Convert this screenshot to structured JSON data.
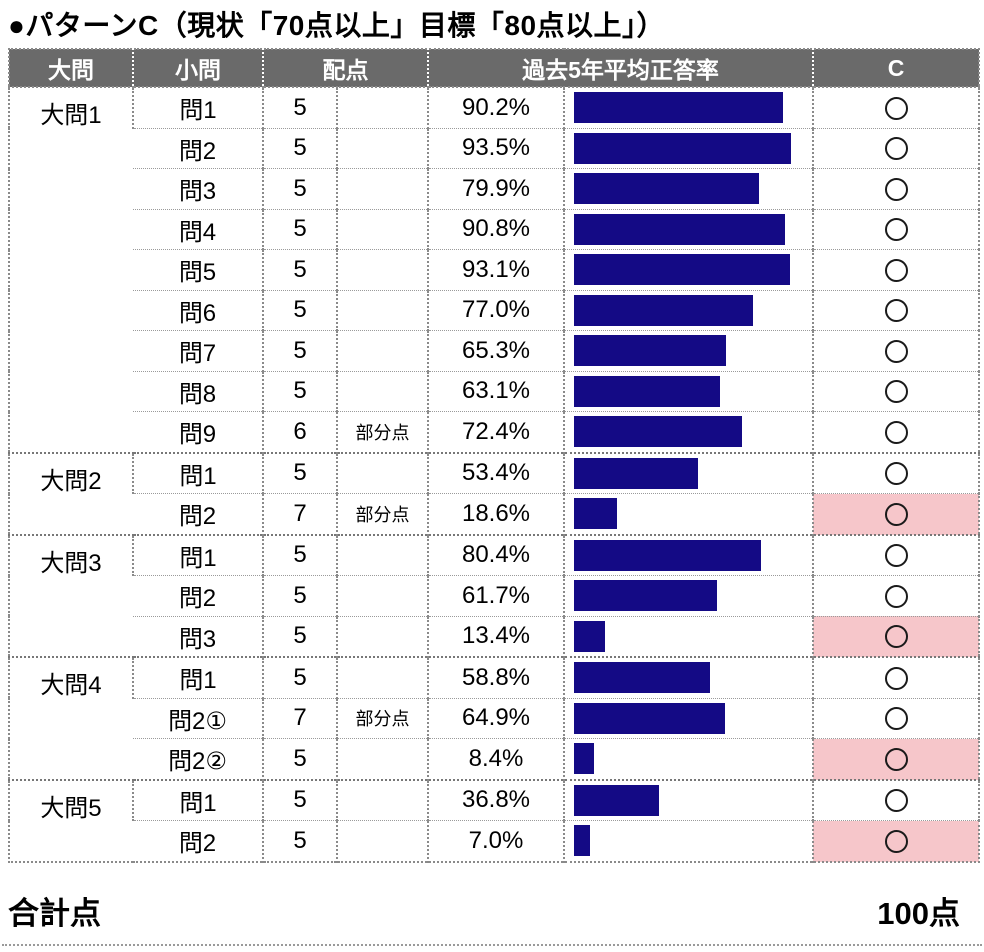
{
  "title": "●パターンC（現状「70点以上」目標「80点以上」）",
  "colors": {
    "header_bg": "#6a6a6a",
    "bar": "#140a85",
    "highlight": "#f6c6ca",
    "circle": "#1a1a1a"
  },
  "table": {
    "headers": {
      "daimon": "大問",
      "shomon": "小問",
      "haiten": "配点",
      "rate": "過去5年平均正答率",
      "c": "C"
    },
    "groups": [
      {
        "label": "大問1",
        "rows": [
          {
            "q": "問1",
            "points": "5",
            "note": "",
            "rate": "90.2%",
            "value": 90.2,
            "mark": "〇",
            "highlight": false
          },
          {
            "q": "問2",
            "points": "5",
            "note": "",
            "rate": "93.5%",
            "value": 93.5,
            "mark": "〇",
            "highlight": false
          },
          {
            "q": "問3",
            "points": "5",
            "note": "",
            "rate": "79.9%",
            "value": 79.9,
            "mark": "〇",
            "highlight": false
          },
          {
            "q": "問4",
            "points": "5",
            "note": "",
            "rate": "90.8%",
            "value": 90.8,
            "mark": "〇",
            "highlight": false
          },
          {
            "q": "問5",
            "points": "5",
            "note": "",
            "rate": "93.1%",
            "value": 93.1,
            "mark": "〇",
            "highlight": false
          },
          {
            "q": "問6",
            "points": "5",
            "note": "",
            "rate": "77.0%",
            "value": 77.0,
            "mark": "〇",
            "highlight": false
          },
          {
            "q": "問7",
            "points": "5",
            "note": "",
            "rate": "65.3%",
            "value": 65.3,
            "mark": "〇",
            "highlight": false
          },
          {
            "q": "問8",
            "points": "5",
            "note": "",
            "rate": "63.1%",
            "value": 63.1,
            "mark": "〇",
            "highlight": false
          },
          {
            "q": "問9",
            "points": "6",
            "note": "部分点",
            "rate": "72.4%",
            "value": 72.4,
            "mark": "〇",
            "highlight": false
          }
        ]
      },
      {
        "label": "大問2",
        "rows": [
          {
            "q": "問1",
            "points": "5",
            "note": "",
            "rate": "53.4%",
            "value": 53.4,
            "mark": "〇",
            "highlight": false
          },
          {
            "q": "問2",
            "points": "7",
            "note": "部分点",
            "rate": "18.6%",
            "value": 18.6,
            "mark": "〇",
            "highlight": true
          }
        ]
      },
      {
        "label": "大問3",
        "rows": [
          {
            "q": "問1",
            "points": "5",
            "note": "",
            "rate": "80.4%",
            "value": 80.4,
            "mark": "〇",
            "highlight": false
          },
          {
            "q": "問2",
            "points": "5",
            "note": "",
            "rate": "61.7%",
            "value": 61.7,
            "mark": "〇",
            "highlight": false
          },
          {
            "q": "問3",
            "points": "5",
            "note": "",
            "rate": "13.4%",
            "value": 13.4,
            "mark": "〇",
            "highlight": true
          }
        ]
      },
      {
        "label": "大問4",
        "rows": [
          {
            "q": "問1",
            "points": "5",
            "note": "",
            "rate": "58.8%",
            "value": 58.8,
            "mark": "〇",
            "highlight": false
          },
          {
            "q": "問2①",
            "points": "7",
            "note": "部分点",
            "rate": "64.9%",
            "value": 64.9,
            "mark": "〇",
            "highlight": false
          },
          {
            "q": "問2②",
            "points": "5",
            "note": "",
            "rate": "8.4%",
            "value": 8.4,
            "mark": "〇",
            "highlight": true
          }
        ]
      },
      {
        "label": "大問5",
        "rows": [
          {
            "q": "問1",
            "points": "5",
            "note": "",
            "rate": "36.8%",
            "value": 36.8,
            "mark": "〇",
            "highlight": false
          },
          {
            "q": "問2",
            "points": "5",
            "note": "",
            "rate": "7.0%",
            "value": 7.0,
            "mark": "〇",
            "highlight": true
          }
        ]
      }
    ]
  },
  "footer": {
    "total_label": "合計点",
    "total_value": "100点"
  },
  "chart_data": {
    "type": "bar",
    "orientation": "horizontal",
    "title": "過去5年平均正答率",
    "categories": [
      "大問1 問1",
      "大問1 問2",
      "大問1 問3",
      "大問1 問4",
      "大問1 問5",
      "大問1 問6",
      "大問1 問7",
      "大問1 問8",
      "大問1 問9",
      "大問2 問1",
      "大問2 問2",
      "大問3 問1",
      "大問3 問2",
      "大問3 問3",
      "大問4 問1",
      "大問4 問2①",
      "大問4 問2②",
      "大問5 問1",
      "大問5 問2"
    ],
    "values": [
      90.2,
      93.5,
      79.9,
      90.8,
      93.1,
      77.0,
      65.3,
      63.1,
      72.4,
      53.4,
      18.6,
      80.4,
      61.7,
      13.4,
      58.8,
      64.9,
      8.4,
      36.8,
      7.0
    ],
    "xlim": [
      0,
      100
    ],
    "grid": false,
    "legend": false,
    "bar_color": "#140a85",
    "highlighted_categories": [
      "大問2 問2",
      "大問3 問3",
      "大問4 問2②",
      "大問5 問2"
    ]
  }
}
